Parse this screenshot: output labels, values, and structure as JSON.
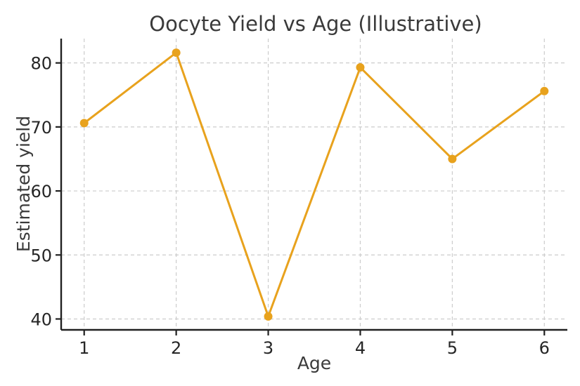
{
  "chart_data": {
    "type": "line",
    "title": "Oocyte Yield vs Age (Illustrative)",
    "xlabel": "Age",
    "ylabel": "Estimated yield",
    "x": [
      1,
      2,
      3,
      4,
      5,
      6
    ],
    "series": [
      {
        "name": "Estimated yield",
        "values": [
          70.6,
          81.6,
          40.4,
          79.3,
          65.0,
          75.6
        ],
        "marker": "circle"
      }
    ],
    "xticks": [
      1,
      2,
      3,
      4,
      5,
      6
    ],
    "xtick_labels": [
      "1",
      "2",
      "3",
      "4",
      "5",
      "6"
    ],
    "yticks": [
      40,
      50,
      60,
      70,
      80
    ],
    "ytick_labels": [
      "40",
      "50",
      "60",
      "70",
      "80"
    ],
    "xlim": [
      0.75,
      6.25
    ],
    "ylim": [
      38.3,
      83.8
    ],
    "grid": true,
    "grid_style": "dashed",
    "legend": "none",
    "spines": [
      "left",
      "bottom"
    ],
    "colors": {
      "line": "#E8A21D",
      "marker": "#E8A21D",
      "grid": "#CCCCCC",
      "spine": "#212121",
      "title_text": "#3A3A3A",
      "label_text": "#3A3A3A",
      "tick_text": "#262626",
      "background": "#FFFFFF"
    }
  }
}
